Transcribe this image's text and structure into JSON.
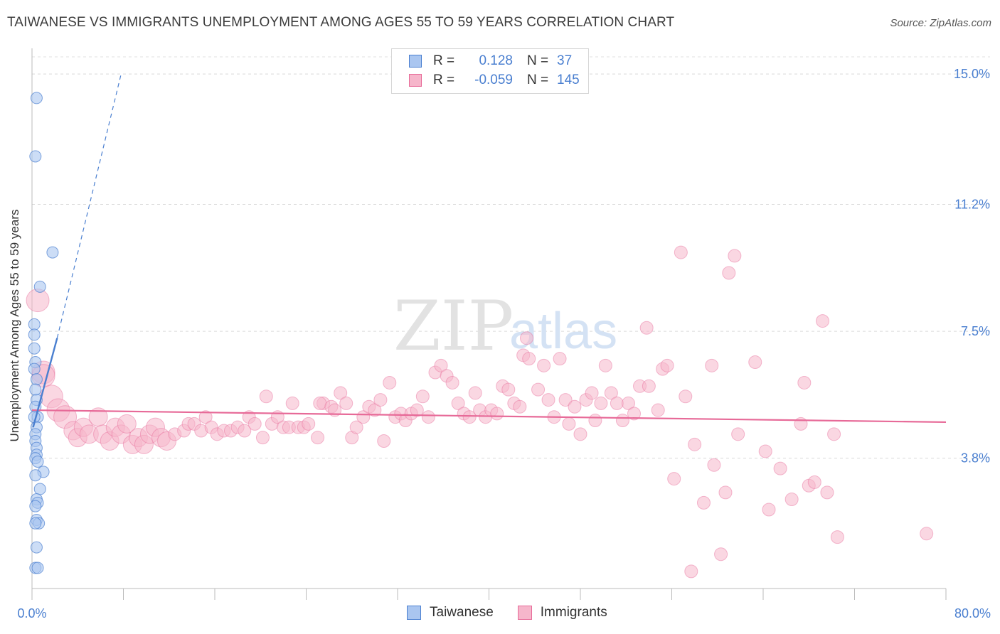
{
  "chart_data": {
    "type": "scatter",
    "title": "TAIWANESE VS IMMIGRANTS UNEMPLOYMENT AMONG AGES 55 TO 59 YEARS CORRELATION CHART",
    "source": "Source: ZipAtlas.com",
    "watermark": {
      "zip": "ZIP",
      "atlas": "atlas"
    },
    "ylabel": "Unemployment Among Ages 55 to 59 years",
    "xlim": [
      0,
      80
    ],
    "ylim": [
      0,
      15.5
    ],
    "x_tick_labels": [
      "0.0%",
      "80.0%"
    ],
    "y_ticks": [
      3.8,
      7.5,
      11.2,
      15.0
    ],
    "y_tick_labels": [
      "3.8%",
      "7.5%",
      "11.2%",
      "15.0%"
    ],
    "legend": {
      "r_label": "R =",
      "n_label": "N =",
      "entries": [
        {
          "name": "Taiwanese",
          "r": "0.128",
          "n": "37"
        },
        {
          "name": "Immigrants",
          "r": "-0.059",
          "n": "145"
        }
      ]
    },
    "series": [
      {
        "name": "Taiwanese",
        "color": "#4a7fd0",
        "fill": "#aac6f0",
        "trend": {
          "x0": 0.1,
          "y0": 4.7,
          "x1": 2.2,
          "y1": 7.3
        },
        "trend_ext": {
          "x0": 2.2,
          "y0": 7.3,
          "x1": 7.8,
          "y1": 15.0
        },
        "points": [
          [
            0.4,
            14.3
          ],
          [
            0.3,
            12.6
          ],
          [
            1.8,
            9.8
          ],
          [
            0.7,
            8.8
          ],
          [
            0.2,
            7.7
          ],
          [
            0.2,
            7.4
          ],
          [
            0.2,
            7.0
          ],
          [
            0.3,
            6.6
          ],
          [
            0.2,
            6.4
          ],
          [
            0.4,
            6.1
          ],
          [
            0.3,
            5.8
          ],
          [
            0.4,
            5.5
          ],
          [
            0.3,
            5.3
          ],
          [
            0.5,
            5.0
          ],
          [
            0.2,
            5.0
          ],
          [
            0.4,
            4.7
          ],
          [
            0.3,
            4.5
          ],
          [
            0.3,
            4.3
          ],
          [
            0.4,
            4.1
          ],
          [
            0.4,
            3.9
          ],
          [
            0.3,
            3.8
          ],
          [
            0.5,
            3.7
          ],
          [
            1.0,
            3.4
          ],
          [
            0.3,
            3.3
          ],
          [
            0.7,
            2.9
          ],
          [
            0.4,
            2.6
          ],
          [
            0.5,
            2.5
          ],
          [
            0.3,
            2.4
          ],
          [
            0.4,
            2.0
          ],
          [
            0.6,
            1.9
          ],
          [
            0.3,
            1.9
          ],
          [
            0.4,
            1.2
          ],
          [
            0.3,
            0.6
          ],
          [
            0.5,
            0.6
          ]
        ]
      },
      {
        "name": "Immigrants",
        "color": "#e76a98",
        "fill": "#f6b6cb",
        "trend": {
          "x0": 0.0,
          "y0": 5.2,
          "x1": 80.0,
          "y1": 4.85
        },
        "points": [
          [
            0.5,
            8.4
          ],
          [
            1.0,
            6.3
          ],
          [
            1.0,
            6.2
          ],
          [
            1.7,
            5.6
          ],
          [
            2.3,
            5.2
          ],
          [
            2.9,
            5.0
          ],
          [
            3.6,
            4.6
          ],
          [
            4.0,
            4.4
          ],
          [
            4.5,
            4.7
          ],
          [
            5.0,
            4.5
          ],
          [
            5.8,
            5.0
          ],
          [
            6.2,
            4.5
          ],
          [
            6.8,
            4.3
          ],
          [
            7.3,
            4.7
          ],
          [
            7.8,
            4.5
          ],
          [
            8.3,
            4.8
          ],
          [
            8.8,
            4.2
          ],
          [
            9.3,
            4.4
          ],
          [
            9.8,
            4.2
          ],
          [
            10.3,
            4.5
          ],
          [
            10.8,
            4.7
          ],
          [
            11.3,
            4.4
          ],
          [
            11.8,
            4.3
          ],
          [
            12.5,
            4.5
          ],
          [
            13.3,
            4.6
          ],
          [
            13.7,
            4.8
          ],
          [
            14.2,
            4.8
          ],
          [
            14.8,
            4.6
          ],
          [
            15.2,
            5.0
          ],
          [
            15.7,
            4.7
          ],
          [
            16.2,
            4.5
          ],
          [
            16.8,
            4.6
          ],
          [
            17.4,
            4.6
          ],
          [
            18.0,
            4.7
          ],
          [
            18.6,
            4.6
          ],
          [
            19.0,
            5.0
          ],
          [
            19.5,
            4.8
          ],
          [
            20.2,
            4.4
          ],
          [
            20.5,
            5.6
          ],
          [
            21.0,
            4.8
          ],
          [
            21.5,
            5.0
          ],
          [
            22.0,
            4.7
          ],
          [
            22.5,
            4.7
          ],
          [
            22.8,
            5.4
          ],
          [
            23.3,
            4.7
          ],
          [
            23.8,
            4.7
          ],
          [
            24.2,
            4.8
          ],
          [
            25.0,
            4.4
          ],
          [
            25.5,
            5.4
          ],
          [
            25.2,
            5.4
          ],
          [
            26.2,
            5.3
          ],
          [
            26.5,
            5.2
          ],
          [
            27.0,
            5.7
          ],
          [
            27.5,
            5.4
          ],
          [
            28.0,
            4.4
          ],
          [
            28.4,
            4.7
          ],
          [
            29.0,
            5.0
          ],
          [
            29.5,
            5.3
          ],
          [
            30.0,
            5.2
          ],
          [
            30.5,
            5.5
          ],
          [
            30.8,
            4.3
          ],
          [
            31.3,
            6.0
          ],
          [
            31.8,
            5.0
          ],
          [
            32.3,
            5.1
          ],
          [
            32.7,
            4.9
          ],
          [
            33.2,
            5.1
          ],
          [
            33.7,
            5.2
          ],
          [
            34.2,
            5.6
          ],
          [
            34.7,
            5.0
          ],
          [
            35.3,
            6.3
          ],
          [
            35.8,
            6.5
          ],
          [
            36.3,
            6.2
          ],
          [
            36.8,
            6.0
          ],
          [
            37.3,
            5.4
          ],
          [
            37.8,
            5.1
          ],
          [
            38.3,
            5.0
          ],
          [
            38.8,
            5.7
          ],
          [
            39.2,
            5.2
          ],
          [
            39.7,
            5.0
          ],
          [
            40.2,
            5.2
          ],
          [
            40.7,
            5.1
          ],
          [
            41.2,
            5.9
          ],
          [
            41.7,
            5.8
          ],
          [
            42.2,
            5.4
          ],
          [
            42.7,
            5.3
          ],
          [
            43.3,
            7.3
          ],
          [
            43.0,
            6.8
          ],
          [
            43.5,
            6.7
          ],
          [
            44.3,
            5.8
          ],
          [
            44.8,
            6.5
          ],
          [
            45.2,
            5.5
          ],
          [
            45.7,
            5.0
          ],
          [
            46.2,
            6.7
          ],
          [
            46.7,
            5.5
          ],
          [
            47.0,
            4.8
          ],
          [
            47.5,
            5.3
          ],
          [
            48.0,
            4.5
          ],
          [
            48.5,
            5.5
          ],
          [
            49.0,
            5.7
          ],
          [
            49.3,
            4.9
          ],
          [
            49.8,
            5.4
          ],
          [
            50.2,
            6.5
          ],
          [
            50.7,
            5.7
          ],
          [
            51.2,
            5.4
          ],
          [
            51.7,
            4.9
          ],
          [
            52.2,
            5.4
          ],
          [
            52.7,
            5.1
          ],
          [
            53.2,
            5.9
          ],
          [
            53.8,
            7.6
          ],
          [
            54.0,
            5.9
          ],
          [
            54.8,
            5.2
          ],
          [
            55.2,
            6.4
          ],
          [
            55.6,
            6.5
          ],
          [
            56.2,
            3.2
          ],
          [
            56.8,
            9.8
          ],
          [
            57.2,
            5.6
          ],
          [
            57.7,
            0.5
          ],
          [
            58.0,
            4.2
          ],
          [
            58.8,
            2.5
          ],
          [
            59.5,
            6.5
          ],
          [
            59.7,
            3.6
          ],
          [
            60.3,
            1.0
          ],
          [
            60.7,
            2.8
          ],
          [
            61.0,
            9.2
          ],
          [
            61.5,
            9.7
          ],
          [
            61.8,
            4.5
          ],
          [
            63.3,
            6.6
          ],
          [
            64.2,
            4.0
          ],
          [
            64.5,
            2.3
          ],
          [
            65.5,
            3.5
          ],
          [
            66.5,
            2.6
          ],
          [
            67.3,
            4.8
          ],
          [
            67.6,
            6.0
          ],
          [
            68.0,
            3.0
          ],
          [
            68.5,
            3.1
          ],
          [
            69.2,
            7.8
          ],
          [
            69.6,
            2.8
          ],
          [
            70.2,
            4.5
          ],
          [
            70.5,
            1.5
          ],
          [
            78.3,
            1.6
          ]
        ]
      }
    ]
  }
}
